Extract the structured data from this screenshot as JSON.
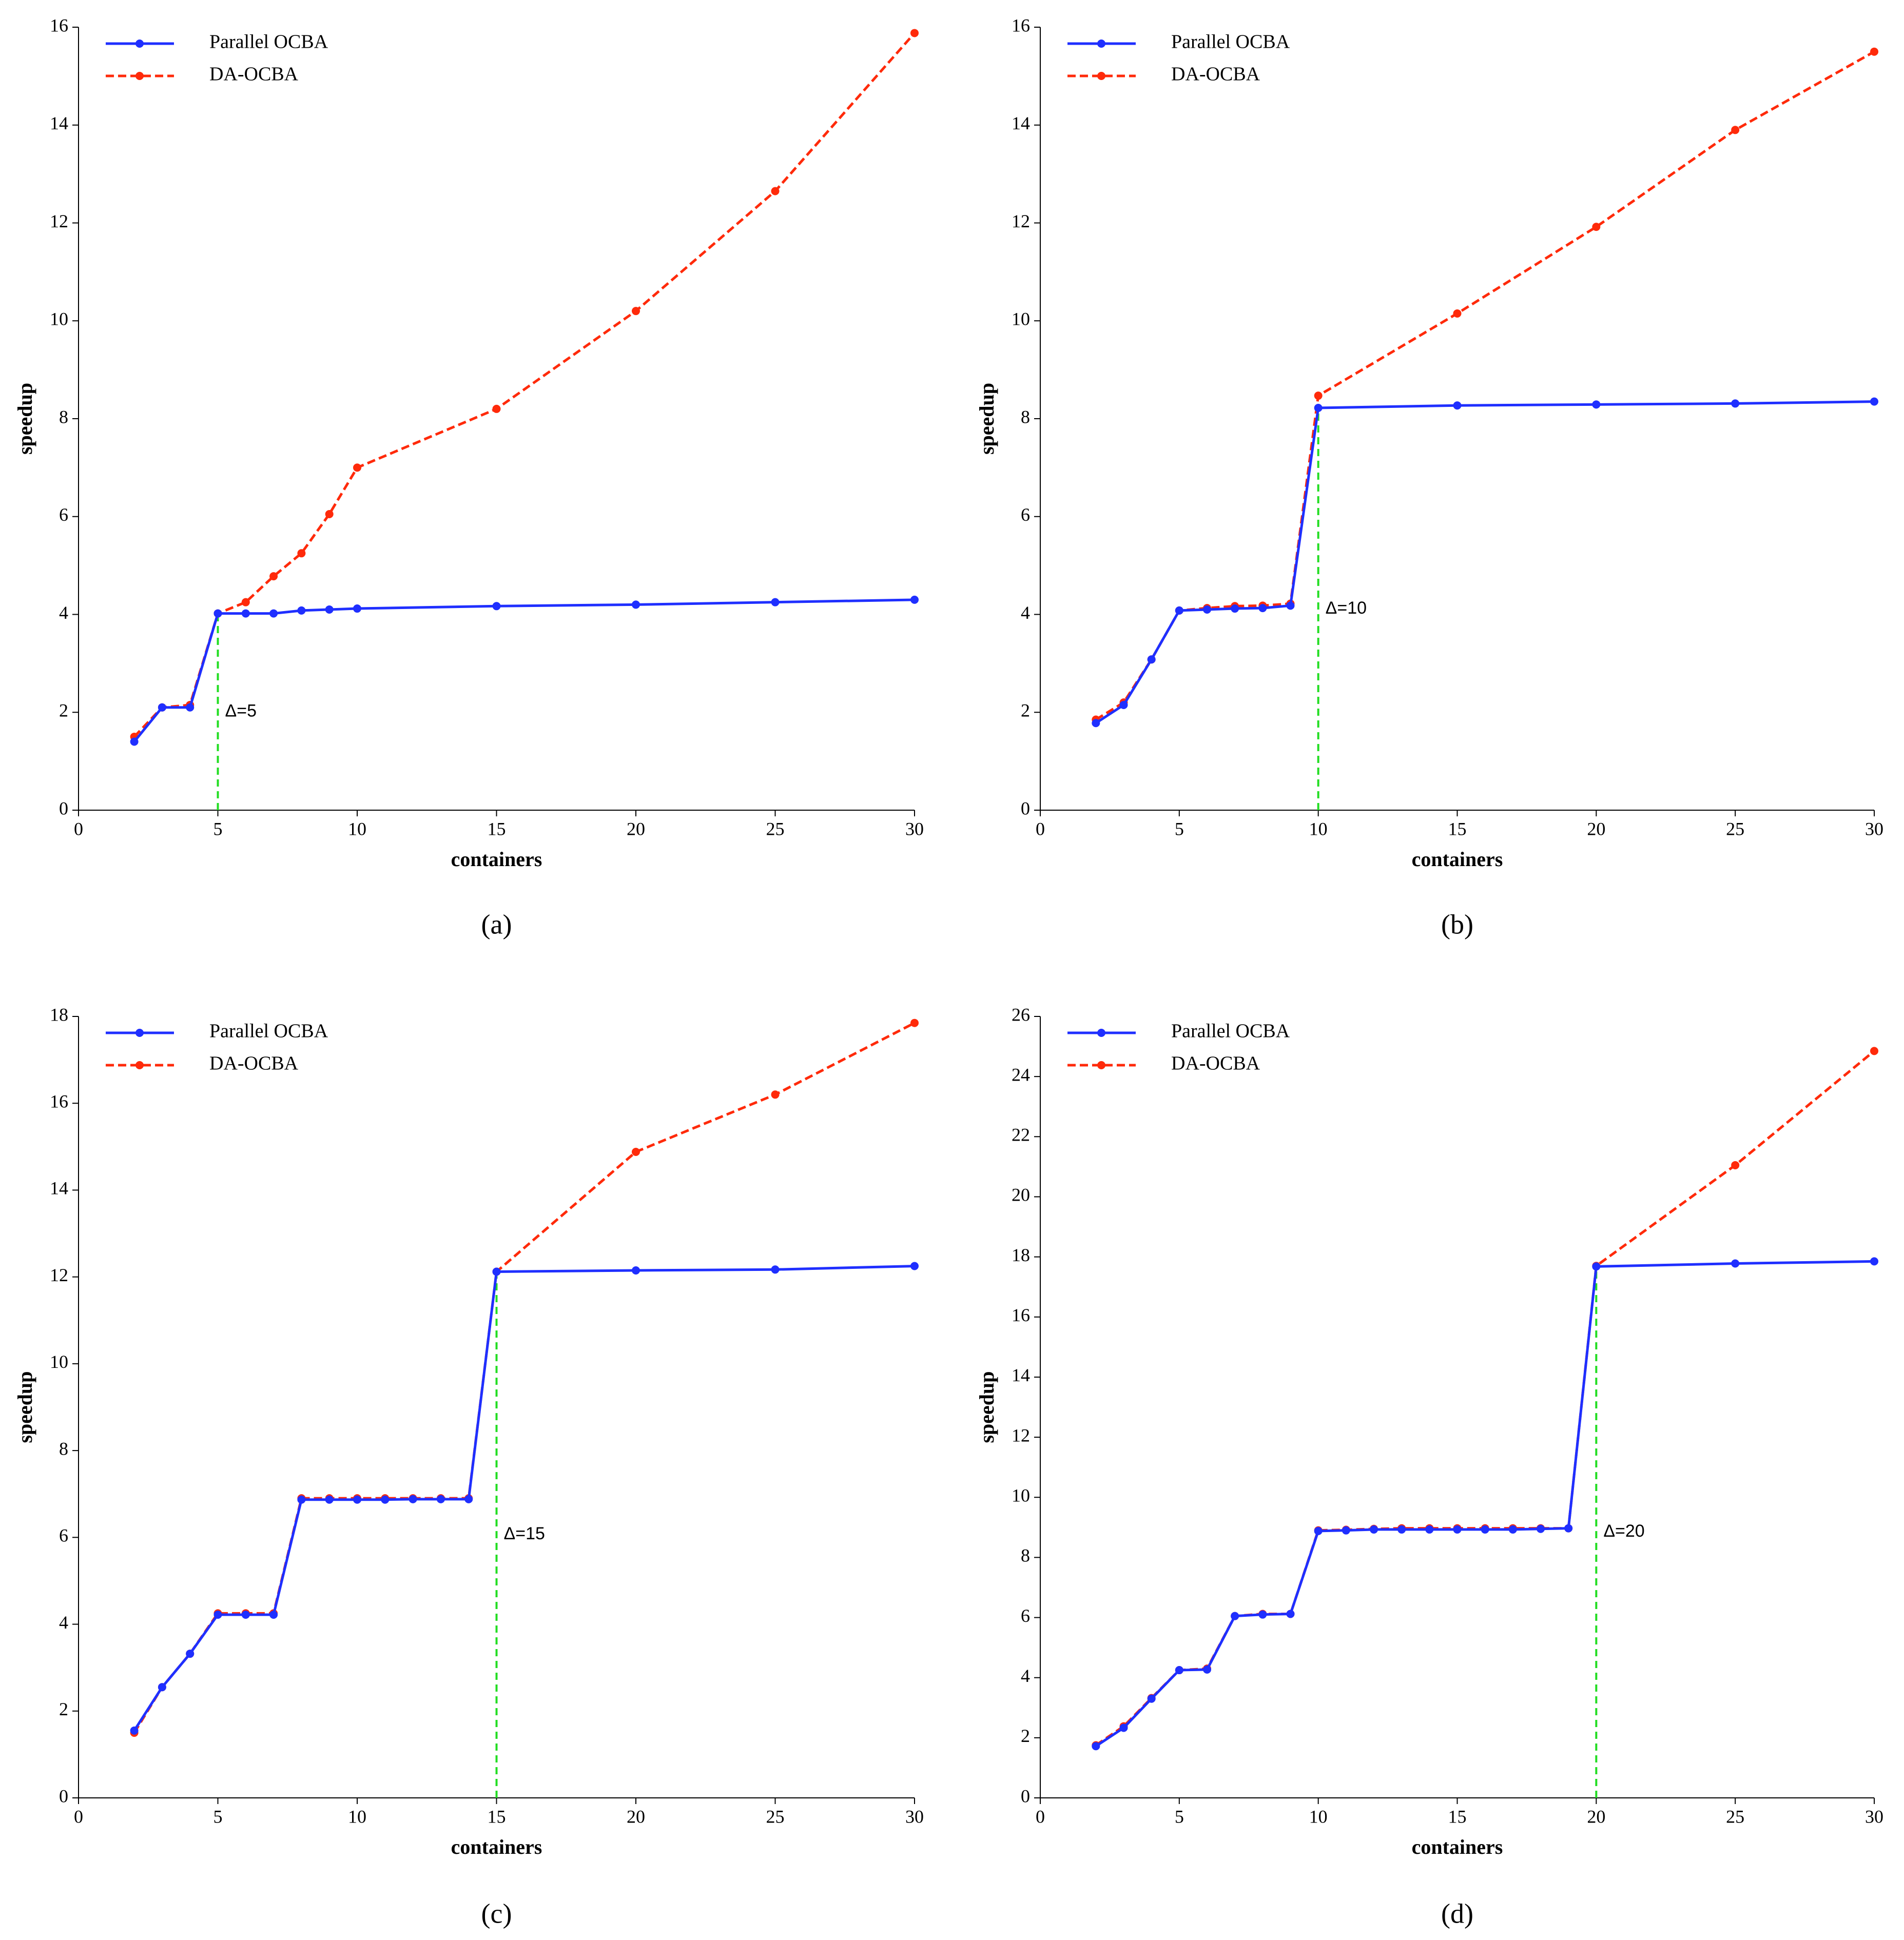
{
  "chart_data": [
    {
      "type": "line",
      "caption": "(a)",
      "xlabel": "containers",
      "ylabel": "speedup",
      "x": [
        2,
        3,
        4,
        5,
        6,
        7,
        8,
        9,
        10,
        15,
        20,
        25,
        30
      ],
      "series": [
        {
          "name": "Parallel OCBA",
          "color": "#1f2fff",
          "linestyle": "solid",
          "values": [
            1.4,
            2.1,
            2.1,
            4.02,
            4.02,
            4.02,
            4.08,
            4.1,
            4.12,
            4.17,
            4.2,
            4.25,
            4.3
          ]
        },
        {
          "name": "DA-OCBA",
          "color": "#ff2a0a",
          "linestyle": "dashed",
          "values": [
            1.5,
            2.1,
            2.15,
            4.02,
            4.25,
            4.78,
            5.25,
            6.05,
            7.0,
            8.2,
            10.2,
            12.65,
            15.88
          ]
        }
      ],
      "annotation": {
        "text": "Δ=5",
        "x": 5,
        "color": "#22dd22"
      },
      "xlim": [
        0,
        30
      ],
      "xticks": [
        0,
        5,
        10,
        15,
        20,
        25,
        30
      ],
      "ylim": [
        0,
        16
      ],
      "yticks": [
        0,
        2,
        4,
        6,
        8,
        10,
        12,
        14,
        16
      ],
      "legend": "upper left"
    },
    {
      "type": "line",
      "caption": "(b)",
      "xlabel": "containers",
      "ylabel": "speedup",
      "x": [
        2,
        3,
        4,
        5,
        6,
        7,
        8,
        9,
        10,
        15,
        20,
        25,
        30
      ],
      "series": [
        {
          "name": "Parallel OCBA",
          "color": "#1f2fff",
          "linestyle": "solid",
          "values": [
            1.78,
            2.15,
            3.08,
            4.08,
            4.1,
            4.12,
            4.13,
            4.18,
            8.22,
            8.27,
            8.29,
            8.31,
            8.35
          ]
        },
        {
          "name": "DA-OCBA",
          "color": "#ff2a0a",
          "linestyle": "dashed",
          "values": [
            1.85,
            2.2,
            3.08,
            4.08,
            4.13,
            4.17,
            4.18,
            4.22,
            8.47,
            10.15,
            11.92,
            13.9,
            15.5
          ]
        }
      ],
      "annotation": {
        "text": "Δ=10",
        "x": 10,
        "color": "#22dd22"
      },
      "xlim": [
        0,
        30
      ],
      "xticks": [
        0,
        5,
        10,
        15,
        20,
        25,
        30
      ],
      "ylim": [
        0,
        16
      ],
      "yticks": [
        0,
        2,
        4,
        6,
        8,
        10,
        12,
        14,
        16
      ],
      "legend": "upper left"
    },
    {
      "type": "line",
      "caption": "(c)",
      "xlabel": "containers",
      "ylabel": "speedup",
      "x": [
        2,
        3,
        4,
        5,
        6,
        7,
        8,
        9,
        10,
        11,
        12,
        13,
        14,
        15,
        20,
        25,
        30
      ],
      "series": [
        {
          "name": "Parallel OCBA",
          "color": "#1f2fff",
          "linestyle": "solid",
          "values": [
            1.55,
            2.55,
            3.32,
            4.22,
            4.22,
            4.22,
            6.87,
            6.87,
            6.87,
            6.87,
            6.88,
            6.88,
            6.88,
            12.12,
            12.15,
            12.17,
            12.25
          ]
        },
        {
          "name": "DA-OCBA",
          "color": "#ff2a0a",
          "linestyle": "dashed",
          "values": [
            1.5,
            2.55,
            3.32,
            4.25,
            4.25,
            4.25,
            6.9,
            6.9,
            6.9,
            6.9,
            6.9,
            6.9,
            6.9,
            12.12,
            14.88,
            16.2,
            17.85
          ]
        }
      ],
      "annotation": {
        "text": "Δ=15",
        "x": 15,
        "color": "#22dd22"
      },
      "xlim": [
        0,
        30
      ],
      "xticks": [
        0,
        5,
        10,
        15,
        20,
        25,
        30
      ],
      "ylim": [
        0,
        18
      ],
      "yticks": [
        0,
        2,
        4,
        6,
        8,
        10,
        12,
        14,
        16,
        18
      ],
      "legend": "upper left"
    },
    {
      "type": "line",
      "caption": "(d)",
      "xlabel": "containers",
      "ylabel": "speedup",
      "x": [
        2,
        3,
        4,
        5,
        6,
        7,
        8,
        9,
        10,
        11,
        12,
        13,
        14,
        15,
        16,
        17,
        18,
        19,
        20,
        25,
        30
      ],
      "series": [
        {
          "name": "Parallel OCBA",
          "color": "#1f2fff",
          "linestyle": "solid",
          "values": [
            1.72,
            2.33,
            3.3,
            4.25,
            4.27,
            6.05,
            6.1,
            6.12,
            8.88,
            8.9,
            8.93,
            8.93,
            8.93,
            8.93,
            8.93,
            8.93,
            8.95,
            8.97,
            17.68,
            17.78,
            17.85
          ]
        },
        {
          "name": "DA-OCBA",
          "color": "#ff2a0a",
          "linestyle": "dashed",
          "values": [
            1.75,
            2.38,
            3.32,
            4.25,
            4.3,
            6.05,
            6.12,
            6.12,
            8.9,
            8.92,
            8.95,
            8.97,
            8.97,
            8.97,
            8.97,
            8.97,
            8.97,
            8.97,
            17.7,
            21.05,
            24.85
          ]
        }
      ],
      "annotation": {
        "text": "Δ=20",
        "x": 20,
        "color": "#22dd22"
      },
      "xlim": [
        0,
        30
      ],
      "xticks": [
        0,
        5,
        10,
        15,
        20,
        25,
        30
      ],
      "ylim": [
        0,
        26
      ],
      "yticks": [
        0,
        2,
        4,
        6,
        8,
        10,
        12,
        14,
        16,
        18,
        20,
        22,
        24,
        26
      ],
      "legend": "upper left"
    }
  ]
}
